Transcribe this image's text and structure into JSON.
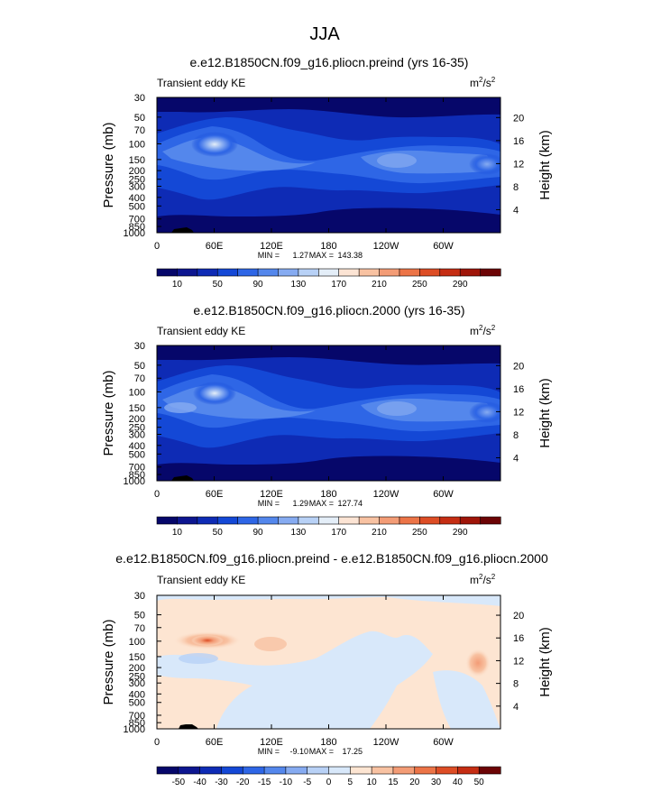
{
  "figure": {
    "title": "JJA"
  },
  "chart_data": [
    {
      "type": "heatmap",
      "title": "e.e12.B1850CN.f09_g16.pliocn.preind (yrs 16-35)",
      "left_label": "Transient eddy KE",
      "units_base": "m",
      "units_exp1": "2",
      "units_mid": "/s",
      "units_exp2": "2",
      "ylabel": "Pressure (mb)",
      "y2label": "Height (km)",
      "x_ticks": [
        "0",
        "60E",
        "120E",
        "180",
        "120W",
        "60W"
      ],
      "x_tick_values": [
        0,
        60,
        120,
        180,
        240,
        300
      ],
      "xlim": [
        0,
        360
      ],
      "y_ticks": [
        "30",
        "50",
        "70",
        "100",
        "150",
        "200",
        "250",
        "300",
        "400",
        "500",
        "700",
        "850",
        "1000"
      ],
      "y_tick_values": [
        30,
        50,
        70,
        100,
        150,
        200,
        250,
        300,
        400,
        500,
        700,
        850,
        1000
      ],
      "ylim": [
        1000,
        30
      ],
      "y_scale": "log",
      "y2_ticks": [
        "20",
        "16",
        "12",
        "8",
        "4"
      ],
      "y2_tick_values": [
        20,
        16,
        12,
        8,
        4
      ],
      "min_label": "MIN =",
      "min_value": "1.27",
      "max_label": "MAX =",
      "max_value": "143.38",
      "colorbar_labels": [
        "10",
        "50",
        "90",
        "130",
        "170",
        "210",
        "250",
        "290"
      ],
      "colorbar_colors": [
        "#06076a",
        "#0d1690",
        "#0e2bb5",
        "#1448d6",
        "#2e66e6",
        "#5487ec",
        "#86abf1",
        "#b8d1f6",
        "#e4eef8",
        "#fce4d4",
        "#f8c2a2",
        "#f39c76",
        "#ec7447",
        "#dd4d25",
        "#c52d13",
        "#9f1509",
        "#6c0405"
      ],
      "peak": {
        "lon": 60,
        "p": 100,
        "value": 143.38
      }
    },
    {
      "type": "heatmap",
      "title": "e.e12.B1850CN.f09_g16.pliocn.2000 (yrs 16-35)",
      "left_label": "Transient eddy KE",
      "units_base": "m",
      "units_exp1": "2",
      "units_mid": "/s",
      "units_exp2": "2",
      "ylabel": "Pressure (mb)",
      "y2label": "Height (km)",
      "x_ticks": [
        "0",
        "60E",
        "120E",
        "180",
        "120W",
        "60W"
      ],
      "x_tick_values": [
        0,
        60,
        120,
        180,
        240,
        300
      ],
      "xlim": [
        0,
        360
      ],
      "y_ticks": [
        "30",
        "50",
        "70",
        "100",
        "150",
        "200",
        "250",
        "300",
        "400",
        "500",
        "700",
        "850",
        "1000"
      ],
      "y_tick_values": [
        30,
        50,
        70,
        100,
        150,
        200,
        250,
        300,
        400,
        500,
        700,
        850,
        1000
      ],
      "ylim": [
        1000,
        30
      ],
      "y_scale": "log",
      "y2_ticks": [
        "20",
        "16",
        "12",
        "8",
        "4"
      ],
      "y2_tick_values": [
        20,
        16,
        12,
        8,
        4
      ],
      "min_label": "MIN =",
      "min_value": "1.29",
      "max_label": "MAX =",
      "max_value": "127.74",
      "colorbar_labels": [
        "10",
        "50",
        "90",
        "130",
        "170",
        "210",
        "250",
        "290"
      ],
      "colorbar_colors": [
        "#06076a",
        "#0d1690",
        "#0e2bb5",
        "#1448d6",
        "#2e66e6",
        "#5487ec",
        "#86abf1",
        "#b8d1f6",
        "#e4eef8",
        "#fce4d4",
        "#f8c2a2",
        "#f39c76",
        "#ec7447",
        "#dd4d25",
        "#c52d13",
        "#9f1509",
        "#6c0405"
      ],
      "peak": {
        "lon": 60,
        "p": 100,
        "value": 127.74
      }
    },
    {
      "type": "heatmap",
      "title": "e.e12.B1850CN.f09_g16.pliocn.preind - e.e12.B1850CN.f09_g16.pliocn.2000",
      "left_label": "Transient eddy KE",
      "units_base": "m",
      "units_exp1": "2",
      "units_mid": "/s",
      "units_exp2": "2",
      "ylabel": "Pressure (mb)",
      "y2label": "Height (km)",
      "x_ticks": [
        "0",
        "60E",
        "120E",
        "180",
        "120W",
        "60W"
      ],
      "x_tick_values": [
        0,
        60,
        120,
        180,
        240,
        300
      ],
      "xlim": [
        0,
        360
      ],
      "y_ticks": [
        "30",
        "50",
        "70",
        "100",
        "150",
        "200",
        "250",
        "300",
        "400",
        "500",
        "700",
        "850",
        "1000"
      ],
      "y_tick_values": [
        30,
        50,
        70,
        100,
        150,
        200,
        250,
        300,
        400,
        500,
        700,
        850,
        1000
      ],
      "ylim": [
        1000,
        30
      ],
      "y_scale": "log",
      "y2_ticks": [
        "20",
        "16",
        "12",
        "8",
        "4"
      ],
      "y2_tick_values": [
        20,
        16,
        12,
        8,
        4
      ],
      "min_label": "MIN =",
      "min_value": "-9.10",
      "max_label": "MAX =",
      "max_value": "17.25",
      "colorbar_labels": [
        "-50",
        "-40",
        "-30",
        "-20",
        "-15",
        "-10",
        "-5",
        "0",
        "5",
        "10",
        "15",
        "20",
        "30",
        "40",
        "50"
      ],
      "colorbar_colors": [
        "#06076a",
        "#0d1690",
        "#0e2bb5",
        "#1448d6",
        "#2e66e6",
        "#5487ec",
        "#86abf1",
        "#b8d1f6",
        "#d8e8fa",
        "#fde5d2",
        "#f8c2a2",
        "#f39c76",
        "#ec7447",
        "#dd4d25",
        "#c52d13",
        "#6c0405"
      ],
      "peak": {
        "lon": 60,
        "p": 100,
        "value": 17.25
      }
    }
  ]
}
